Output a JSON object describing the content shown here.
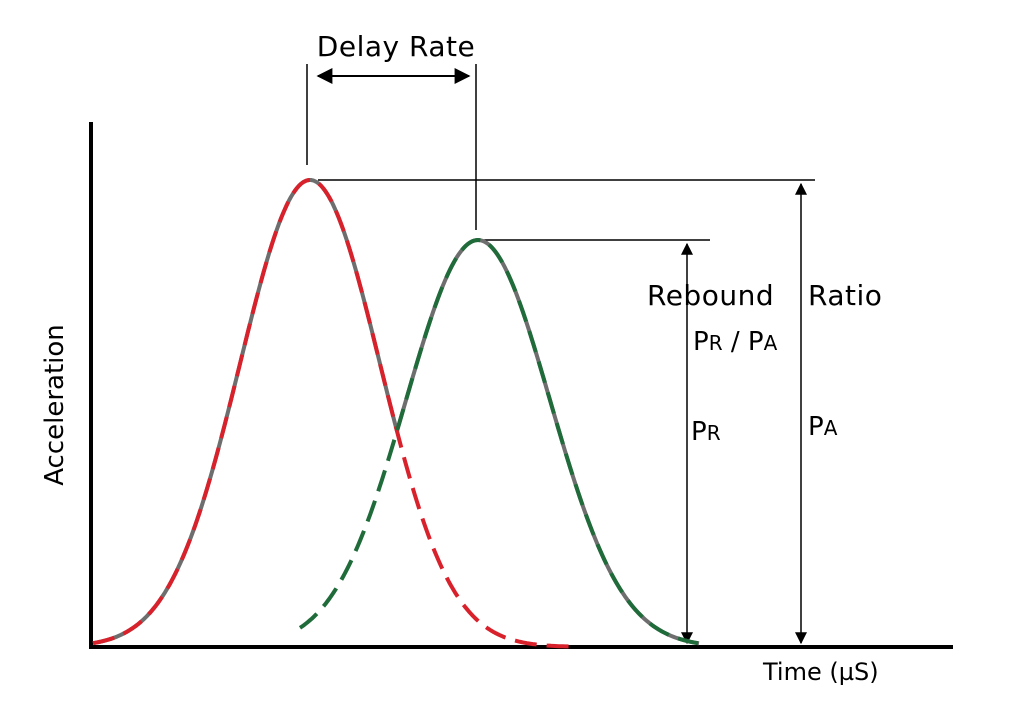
{
  "labels": {
    "delay_rate": "Delay Rate",
    "rebound": "Rebound",
    "ratio": "Ratio",
    "ratio_formula": {
      "p1": "P",
      "s1": "R",
      "sep": " / ",
      "p2": "P",
      "s2": "A"
    },
    "pr": {
      "p": "P",
      "s": "R"
    },
    "pa": {
      "p": "P",
      "s": "A"
    },
    "y_axis": "Acceleration",
    "x_axis": "Time (µS)"
  },
  "colors": {
    "combined_curve": "#6e6e6e",
    "first_pulse": "#d9212b",
    "second_pulse": "#1f6b3a",
    "lines": "#000000"
  }
}
